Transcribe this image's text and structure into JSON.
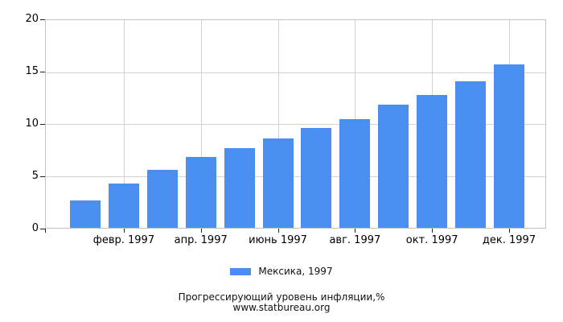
{
  "colors": {
    "bar": "#4a8ff0",
    "gridline": "#d2d2d2",
    "axis_box": "#c3c3c3",
    "tick": "#222222",
    "text": "#111111"
  },
  "chart_data": {
    "type": "bar",
    "title": "Прогрессирующий уровень инфляции,%",
    "footer_url": "www.statbureau.org",
    "series": [
      {
        "name": "Мексика, 1997",
        "color": "#4a8ff0",
        "values": [
          2.6,
          4.3,
          5.6,
          6.8,
          7.7,
          8.6,
          9.6,
          10.5,
          11.9,
          12.8,
          14.1,
          15.7
        ]
      }
    ],
    "x_tick_labels": [
      "февр. 1997",
      "апр. 1997",
      "июнь 1997",
      "авг. 1997",
      "окт. 1997",
      "дек. 1997"
    ],
    "x_tick_bar_indices": [
      1,
      3,
      5,
      7,
      9,
      11
    ],
    "y_ticks": [
      0,
      5,
      10,
      15,
      20
    ],
    "ylim": [
      0,
      20
    ],
    "grid": true,
    "legend_position": "bottom"
  }
}
